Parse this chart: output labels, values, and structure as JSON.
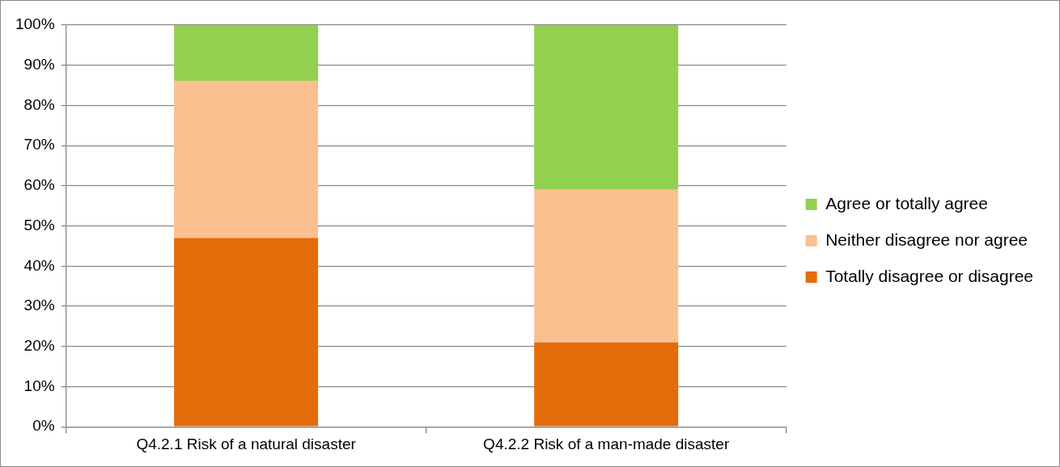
{
  "chart_data": {
    "type": "bar",
    "stacked": true,
    "categories": [
      "Q4.2.1 Risk of a natural disaster",
      "Q4.2.2 Risk of a man-made disaster"
    ],
    "series": [
      {
        "name": "Totally disagree or disagree",
        "color": "#e46c0a",
        "values": [
          47,
          21
        ]
      },
      {
        "name": "Neither disagree nor agree",
        "color": "#fac090",
        "values": [
          39,
          38
        ]
      },
      {
        "name": "Agree or totally agree",
        "color": "#92d050",
        "values": [
          14,
          41
        ]
      }
    ],
    "ylim": [
      0,
      100
    ],
    "yticks": [
      {
        "value": 0,
        "label": "0%"
      },
      {
        "value": 10,
        "label": "10%"
      },
      {
        "value": 20,
        "label": "20%"
      },
      {
        "value": 30,
        "label": "30%"
      },
      {
        "value": 40,
        "label": "40%"
      },
      {
        "value": 50,
        "label": "50%"
      },
      {
        "value": 60,
        "label": "60%"
      },
      {
        "value": 70,
        "label": "70%"
      },
      {
        "value": 80,
        "label": "80%"
      },
      {
        "value": 90,
        "label": "90%"
      },
      {
        "value": 100,
        "label": "100%"
      }
    ],
    "grid": "y",
    "legend": "right"
  }
}
